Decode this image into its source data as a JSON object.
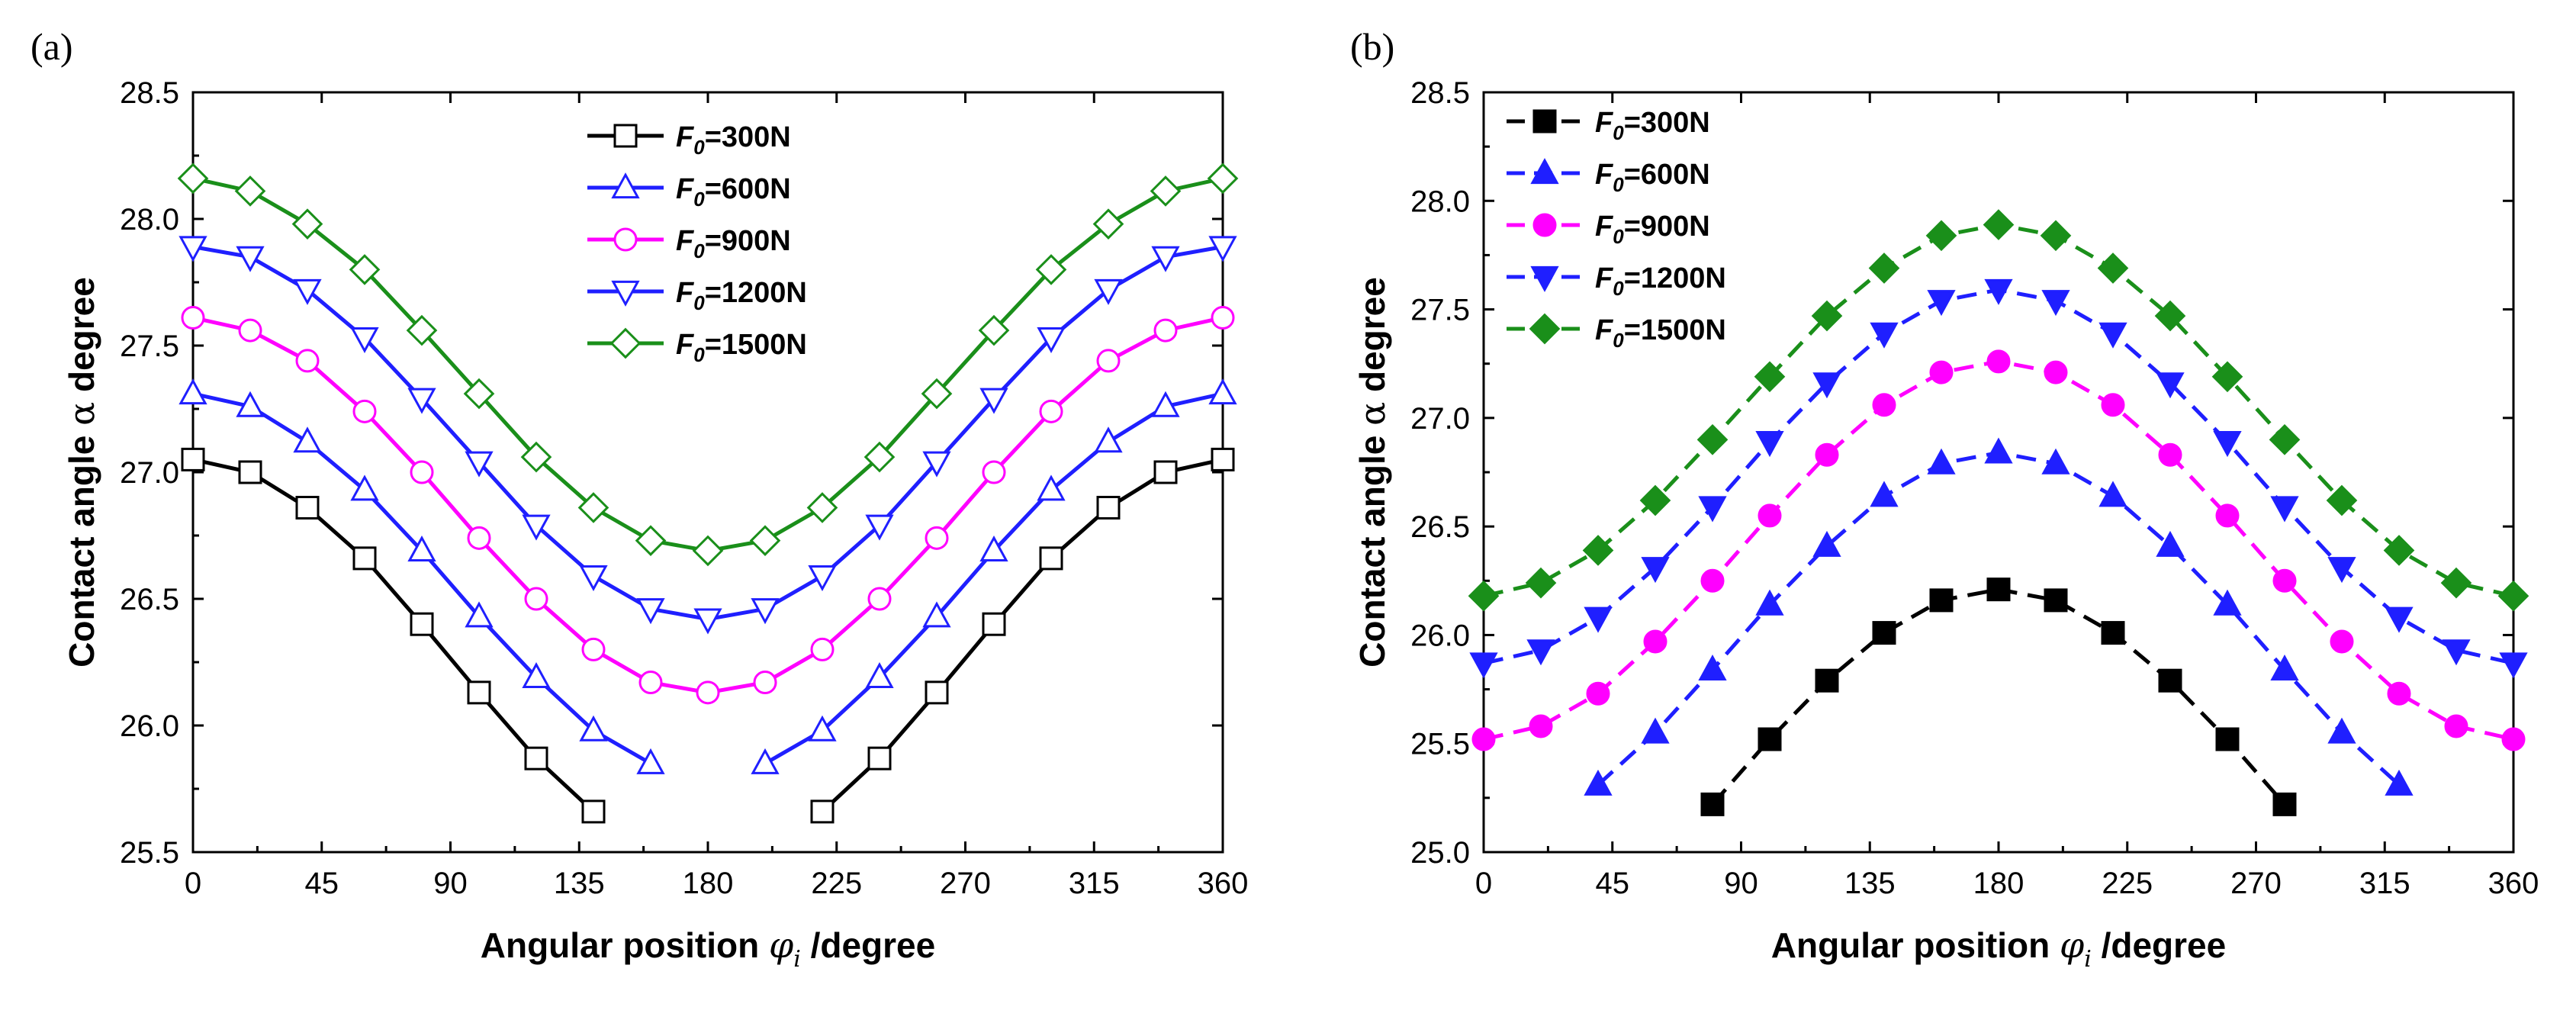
{
  "chart_data": [
    {
      "panel_label": "(a)",
      "type": "line",
      "line_style": "solid",
      "marker_fill": "open",
      "xlabel_main": "Angular position ",
      "xlabel_symbol": "φ",
      "xlabel_subscript": "i",
      "xlabel_unit": " /degree",
      "ylabel_main": "Contact angle ",
      "ylabel_symbol": "α",
      "ylabel_unit": " degree",
      "xlim": [
        0,
        360
      ],
      "ylim": [
        25.5,
        28.5
      ],
      "xticks": [
        "0",
        "45",
        "90",
        "135",
        "180",
        "225",
        "270",
        "315",
        "360"
      ],
      "yticks": [
        "25.5",
        "26.0",
        "26.5",
        "27.0",
        "27.5",
        "28.0",
        "28.5"
      ],
      "legend_position": "top-center",
      "series": [
        {
          "name_prefix": "F",
          "name_sub": "0",
          "name_suffix": "=300N",
          "color": "#000000",
          "marker": "square",
          "x": [
            0,
            20,
            40,
            60,
            80,
            100,
            120,
            140,
            null,
            220,
            240,
            260,
            280,
            300,
            320,
            340,
            360
          ],
          "y": [
            27.05,
            27.0,
            26.86,
            26.66,
            26.4,
            26.13,
            25.87,
            25.66,
            null,
            25.66,
            25.87,
            26.13,
            26.4,
            26.66,
            26.86,
            27.0,
            27.05
          ]
        },
        {
          "name_prefix": "F",
          "name_sub": "0",
          "name_suffix": "=600N",
          "color": "#1f1fff",
          "marker": "triangle-up",
          "x": [
            0,
            20,
            40,
            60,
            80,
            100,
            120,
            140,
            160,
            null,
            200,
            220,
            240,
            260,
            280,
            300,
            320,
            340,
            360
          ],
          "y": [
            27.31,
            27.26,
            27.12,
            26.93,
            26.69,
            26.43,
            26.19,
            25.98,
            25.85,
            null,
            25.85,
            25.98,
            26.19,
            26.43,
            26.69,
            26.93,
            27.12,
            27.26,
            27.31
          ]
        },
        {
          "name_prefix": "F",
          "name_sub": "0",
          "name_suffix": "=900N",
          "color": "#ff00ff",
          "marker": "circle",
          "x": [
            0,
            20,
            40,
            60,
            80,
            100,
            120,
            140,
            160,
            180,
            200,
            220,
            240,
            260,
            280,
            300,
            320,
            340,
            360
          ],
          "y": [
            27.61,
            27.56,
            27.44,
            27.24,
            27.0,
            26.74,
            26.5,
            26.3,
            26.17,
            26.13,
            26.17,
            26.3,
            26.5,
            26.74,
            27.0,
            27.24,
            27.44,
            27.56,
            27.61
          ]
        },
        {
          "name_prefix": "F",
          "name_sub": "0",
          "name_suffix": "=1200N",
          "color": "#1f1fff",
          "marker": "triangle-down",
          "x": [
            0,
            20,
            40,
            60,
            80,
            100,
            120,
            140,
            160,
            180,
            200,
            220,
            240,
            260,
            280,
            300,
            320,
            340,
            360
          ],
          "y": [
            27.89,
            27.85,
            27.72,
            27.53,
            27.29,
            27.04,
            26.79,
            26.59,
            26.46,
            26.42,
            26.46,
            26.59,
            26.79,
            27.04,
            27.29,
            27.53,
            27.72,
            27.85,
            27.89
          ]
        },
        {
          "name_prefix": "F",
          "name_sub": "0",
          "name_suffix": "=1500N",
          "color": "#1a8f1a",
          "marker": "diamond",
          "x": [
            0,
            20,
            40,
            60,
            80,
            100,
            120,
            140,
            160,
            180,
            200,
            220,
            240,
            260,
            280,
            300,
            320,
            340,
            360
          ],
          "y": [
            28.16,
            28.11,
            27.98,
            27.8,
            27.56,
            27.31,
            27.06,
            26.86,
            26.73,
            26.69,
            26.73,
            26.86,
            27.06,
            27.31,
            27.56,
            27.8,
            27.98,
            28.11,
            28.16
          ]
        }
      ]
    },
    {
      "panel_label": "(b)",
      "type": "line",
      "line_style": "dashed",
      "marker_fill": "filled",
      "xlabel_main": "Angular position ",
      "xlabel_symbol": "φ",
      "xlabel_subscript": "i",
      "xlabel_unit": " /degree",
      "ylabel_main": "Contact angle ",
      "ylabel_symbol": "α",
      "ylabel_unit": " degree",
      "xlim": [
        0,
        360
      ],
      "ylim": [
        25.0,
        28.5
      ],
      "xticks": [
        "0",
        "45",
        "90",
        "135",
        "180",
        "225",
        "270",
        "315",
        "360"
      ],
      "yticks": [
        "25.0",
        "25.5",
        "26.0",
        "26.5",
        "27.0",
        "27.5",
        "28.0",
        "28.5"
      ],
      "legend_position": "top-left",
      "series": [
        {
          "name_prefix": "F",
          "name_sub": "0",
          "name_suffix": "=300N",
          "color": "#000000",
          "marker": "square",
          "x": [
            80,
            100,
            120,
            140,
            160,
            180,
            200,
            220,
            240,
            260,
            280
          ],
          "y": [
            25.22,
            25.52,
            25.79,
            26.01,
            26.16,
            26.21,
            26.16,
            26.01,
            25.79,
            25.52,
            25.22
          ]
        },
        {
          "name_prefix": "F",
          "name_sub": "0",
          "name_suffix": "=600N",
          "color": "#1f1fff",
          "marker": "triangle-up",
          "x": [
            40,
            60,
            80,
            100,
            120,
            140,
            160,
            180,
            200,
            220,
            240,
            260,
            280,
            300,
            320
          ],
          "y": [
            25.31,
            25.55,
            25.84,
            26.14,
            26.41,
            26.64,
            26.79,
            26.84,
            26.79,
            26.64,
            26.41,
            26.14,
            25.84,
            25.55,
            25.31
          ]
        },
        {
          "name_prefix": "F",
          "name_sub": "0",
          "name_suffix": "=900N",
          "color": "#ff00ff",
          "marker": "circle",
          "x": [
            0,
            20,
            40,
            60,
            80,
            100,
            120,
            140,
            160,
            180,
            200,
            220,
            240,
            260,
            280,
            300,
            320,
            340,
            360
          ],
          "y": [
            25.52,
            25.58,
            25.73,
            25.97,
            26.25,
            26.55,
            26.83,
            27.06,
            27.21,
            27.26,
            27.21,
            27.06,
            26.83,
            26.55,
            26.25,
            25.97,
            25.73,
            25.58,
            25.52
          ]
        },
        {
          "name_prefix": "F",
          "name_sub": "0",
          "name_suffix": "=1200N",
          "color": "#1f1fff",
          "marker": "triangle-down",
          "x": [
            0,
            20,
            40,
            60,
            80,
            100,
            120,
            140,
            160,
            180,
            200,
            220,
            240,
            260,
            280,
            300,
            320,
            340,
            360
          ],
          "y": [
            25.87,
            25.93,
            26.08,
            26.31,
            26.59,
            26.89,
            27.16,
            27.39,
            27.54,
            27.59,
            27.54,
            27.39,
            27.16,
            26.89,
            26.59,
            26.31,
            26.08,
            25.93,
            25.87
          ]
        },
        {
          "name_prefix": "F",
          "name_sub": "0",
          "name_suffix": "=1500N",
          "color": "#1a8f1a",
          "marker": "diamond",
          "x": [
            0,
            20,
            40,
            60,
            80,
            100,
            120,
            140,
            160,
            180,
            200,
            220,
            240,
            260,
            280,
            300,
            320,
            340,
            360
          ],
          "y": [
            26.18,
            26.24,
            26.39,
            26.62,
            26.9,
            27.19,
            27.47,
            27.69,
            27.84,
            27.89,
            27.84,
            27.69,
            27.47,
            27.19,
            26.9,
            26.62,
            26.39,
            26.24,
            26.18
          ]
        }
      ]
    }
  ]
}
